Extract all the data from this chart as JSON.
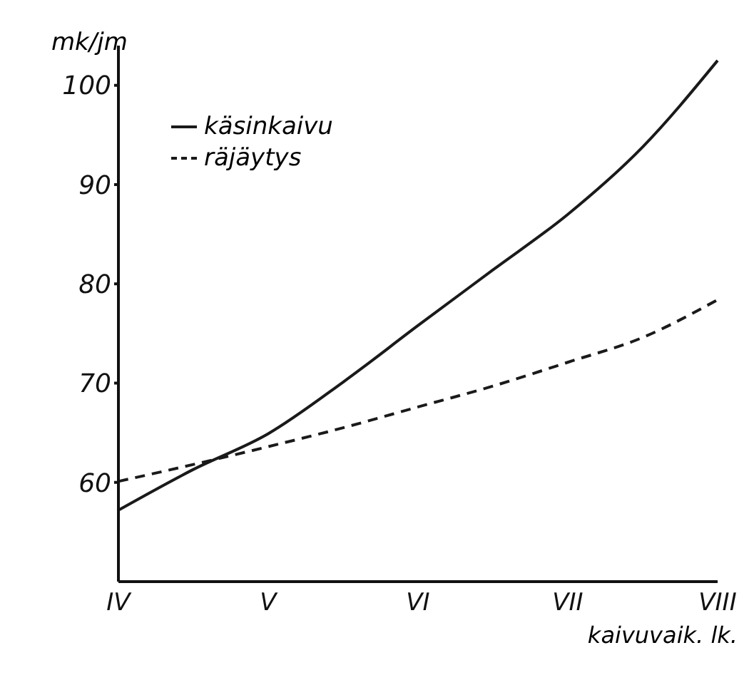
{
  "chart_data": {
    "type": "line",
    "xlabel": "kaivuvaik. lk.",
    "ylabel": "mk/jm",
    "categories": [
      "IV",
      null,
      "V",
      null,
      "VI",
      null,
      "VII",
      null,
      "VIII"
    ],
    "ylim": [
      50,
      104
    ],
    "yticks": [
      60,
      70,
      80,
      90,
      100
    ],
    "legend": "top left",
    "grid": false,
    "series": [
      {
        "name": "käsinkaivu",
        "color": "#1a1a1a",
        "line_style": "solid",
        "values": [
          57.2,
          61.3,
          64.9,
          70.1,
          75.8,
          81.4,
          87,
          93.8,
          102.5
        ]
      },
      {
        "name": "räjäytys",
        "color": "#1a1a1a",
        "line_style": "dashed",
        "values": [
          60.1,
          61.8,
          63.6,
          65.5,
          67.6,
          69.7,
          72.1,
          74.6,
          78.4
        ]
      }
    ]
  }
}
